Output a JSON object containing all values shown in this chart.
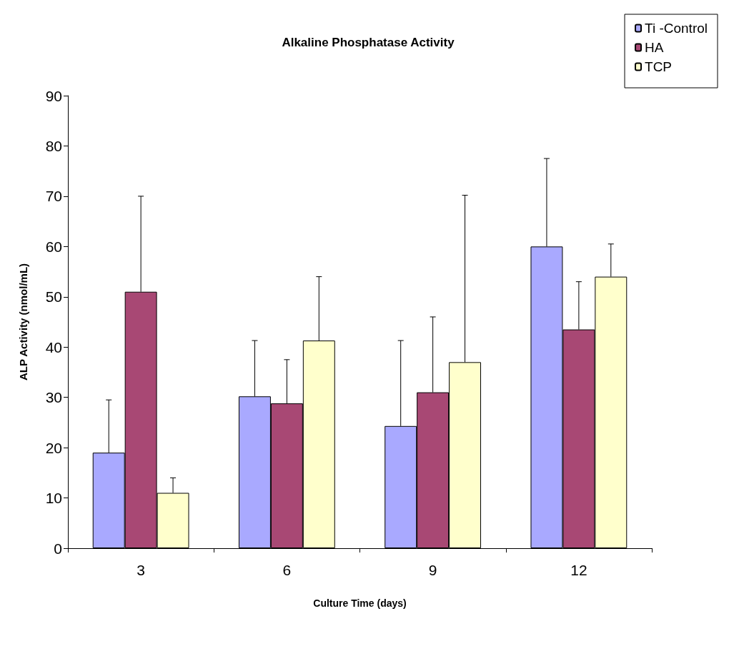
{
  "chart_data": {
    "type": "bar",
    "title": "Alkaline Phosphatase Activity",
    "xlabel": "Culture Time (days)",
    "ylabel": "ALP Activity (nmol/mL)",
    "categories": [
      "3",
      "6",
      "9",
      "12"
    ],
    "series": [
      {
        "name": "Ti -Control",
        "color": "#a9a9ff",
        "values": [
          19,
          30.2,
          24.3,
          60
        ],
        "errors": [
          [
            19,
            29.5
          ],
          [
            30.2,
            41.3
          ],
          [
            24.3,
            41.3
          ],
          [
            60,
            77.5
          ]
        ]
      },
      {
        "name": "HA",
        "color": "#a84874",
        "values": [
          51,
          28.8,
          31,
          43.5
        ],
        "errors": [
          [
            51,
            70
          ],
          [
            28.8,
            37.5
          ],
          [
            31,
            46
          ],
          [
            43.5,
            53
          ]
        ]
      },
      {
        "name": "TCP",
        "color": "#ffffcc",
        "values": [
          11,
          41.3,
          37,
          54
        ],
        "errors": [
          [
            11,
            14
          ],
          [
            41.3,
            54
          ],
          [
            37,
            70.2
          ],
          [
            54,
            60.5
          ]
        ]
      }
    ],
    "ylim": [
      0,
      90
    ],
    "yticks": [
      0,
      10,
      20,
      30,
      40,
      50,
      60,
      70,
      80,
      90
    ],
    "legend": "top right"
  }
}
